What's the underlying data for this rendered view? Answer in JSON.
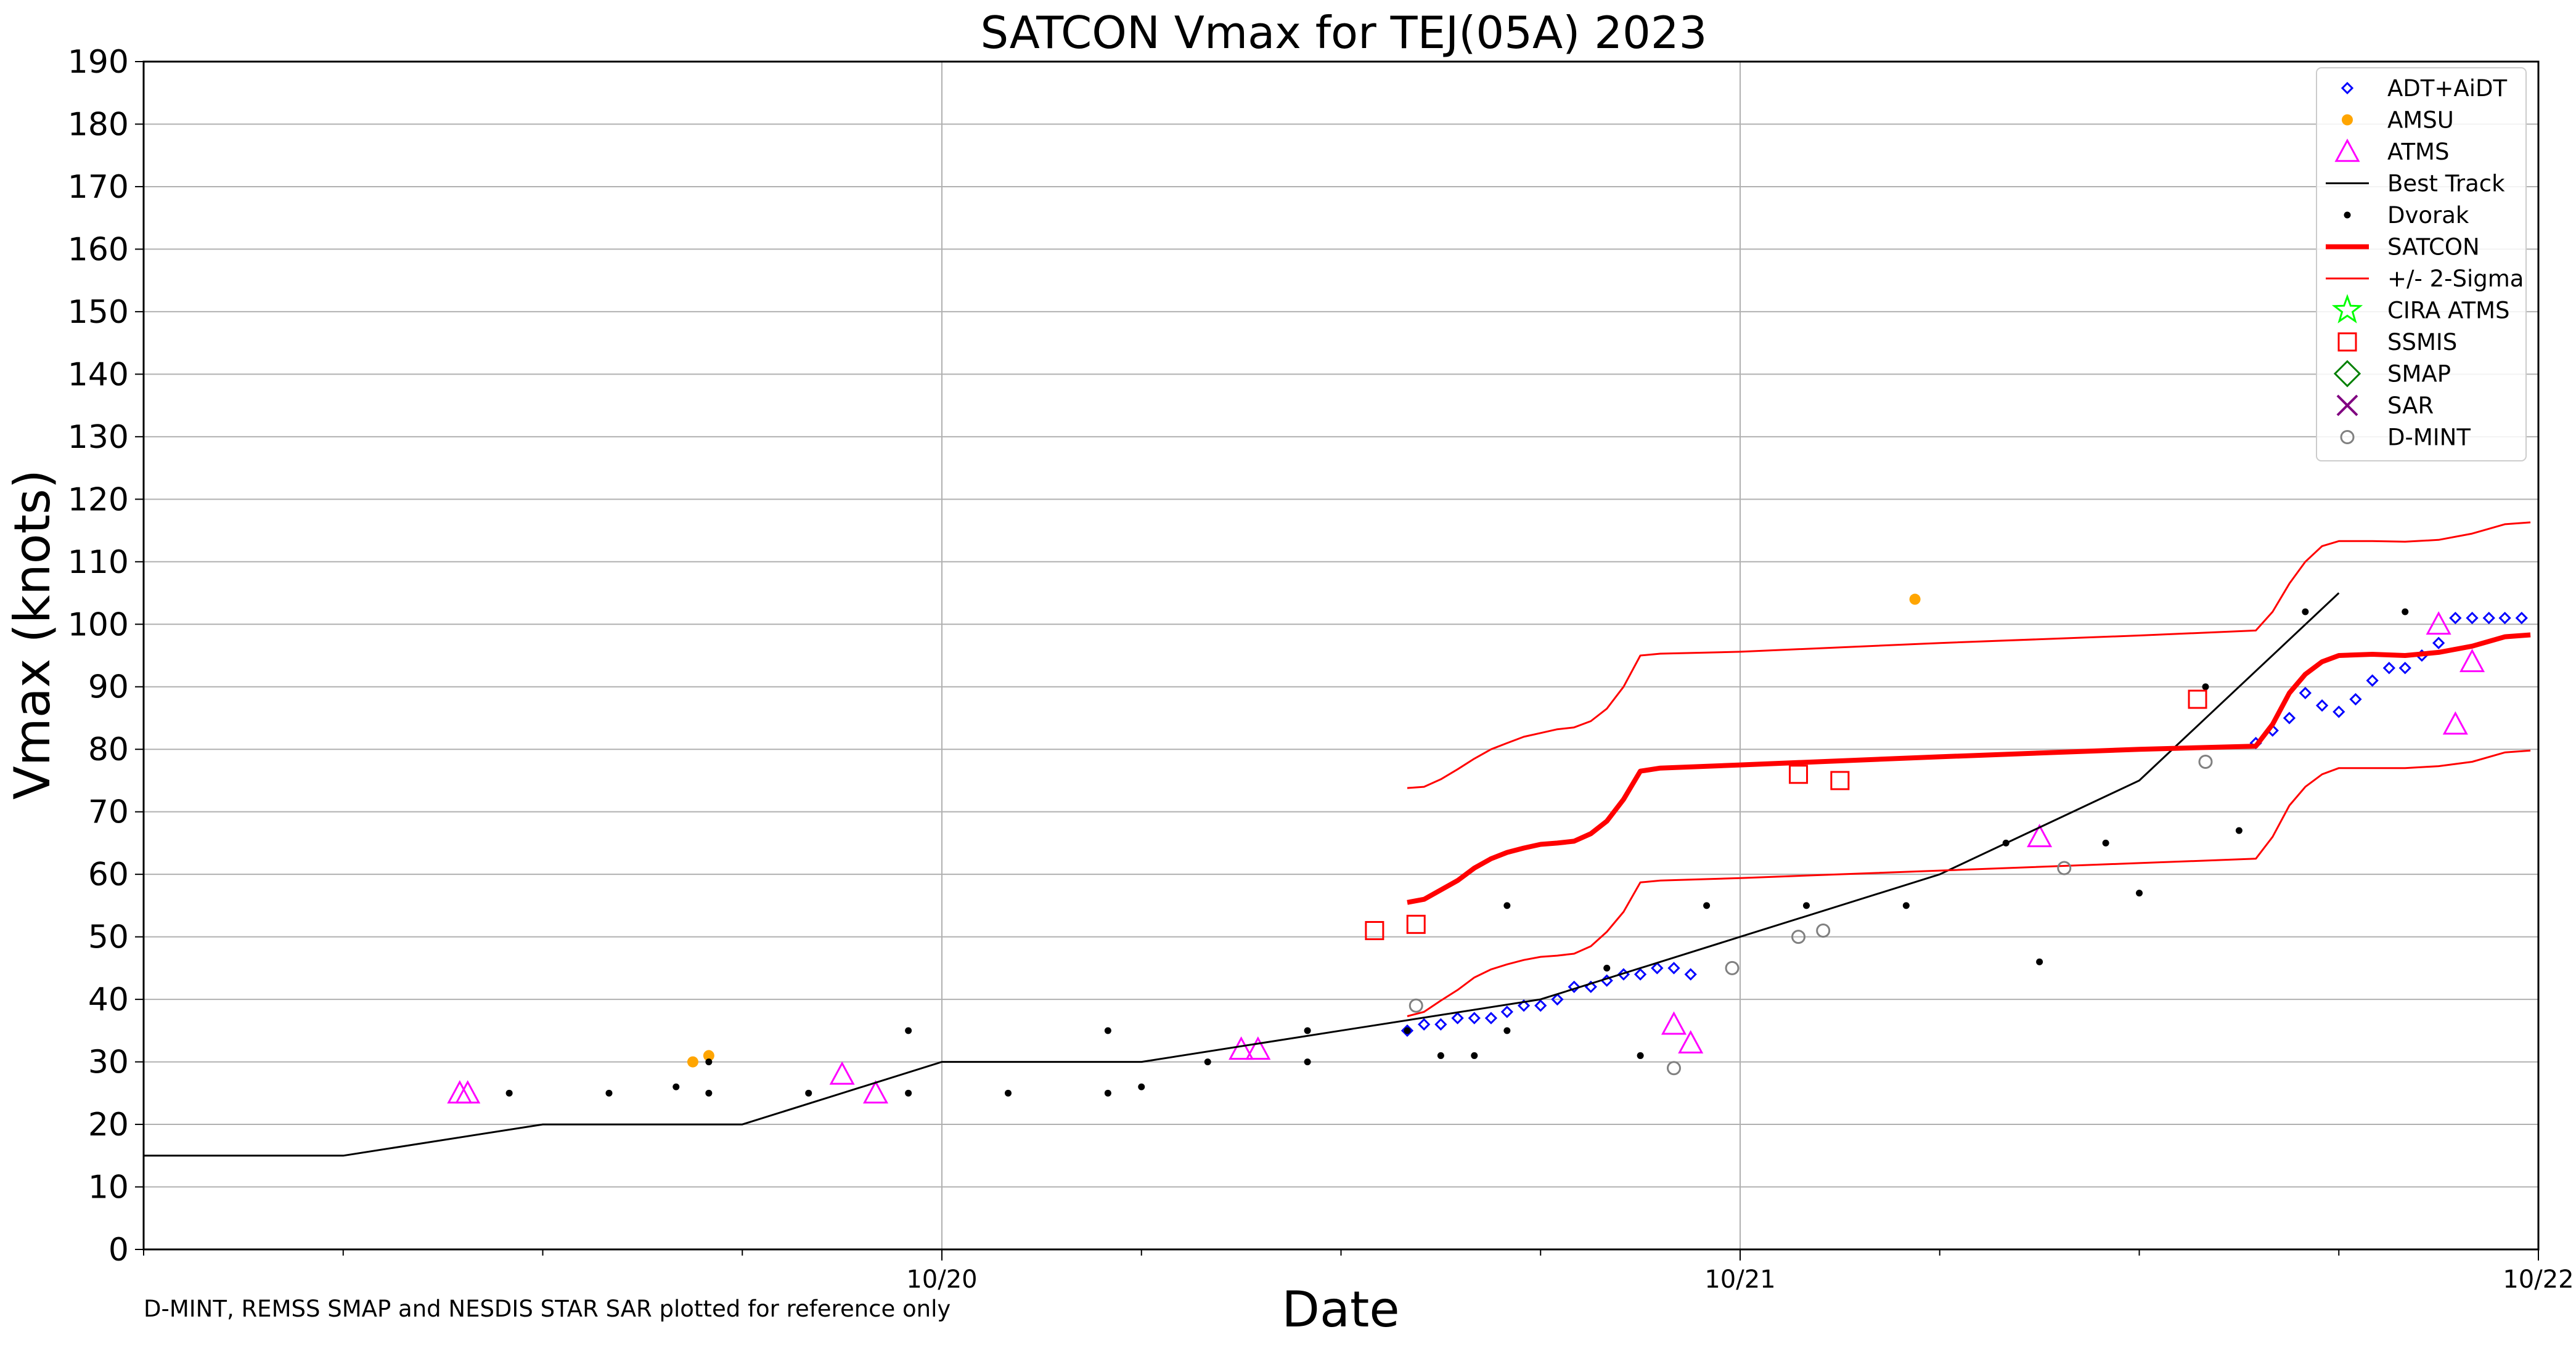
{
  "chart_data": {
    "type": "scatter",
    "title": "SATCON Vmax for TEJ(05A) 2023",
    "xlabel": "Date",
    "ylabel": "Vmax (knots)",
    "footnote": "D-MINT, REMSS SMAP and NESDIS STAR SAR plotted for reference only",
    "x_units": "days since 2023-10-19 00:00 UTC (tick labels show dates)",
    "xlim": [
      0,
      3
    ],
    "ylim": [
      0,
      190
    ],
    "yticks": [
      0,
      10,
      20,
      30,
      40,
      50,
      60,
      70,
      80,
      90,
      100,
      110,
      120,
      130,
      140,
      150,
      160,
      170,
      180,
      190
    ],
    "xticks": [
      {
        "x": 1,
        "label": "10/20"
      },
      {
        "x": 2,
        "label": "10/21"
      },
      {
        "x": 3,
        "label": "10/22"
      }
    ],
    "grid": true,
    "legend_position": "top-right",
    "series": [
      {
        "name": "ADT+AiDT",
        "kind": "marker",
        "marker": "diamond-open",
        "color": "#0000ff",
        "points": [
          [
            1.583,
            35
          ],
          [
            1.604,
            36
          ],
          [
            1.625,
            36
          ],
          [
            1.646,
            37
          ],
          [
            1.667,
            37
          ],
          [
            1.688,
            37
          ],
          [
            1.708,
            38
          ],
          [
            1.729,
            39
          ],
          [
            1.75,
            39
          ],
          [
            1.771,
            40
          ],
          [
            1.792,
            42
          ],
          [
            1.813,
            42
          ],
          [
            1.833,
            43
          ],
          [
            1.854,
            44
          ],
          [
            1.875,
            44
          ],
          [
            1.896,
            45
          ],
          [
            1.917,
            45
          ],
          [
            1.938,
            44
          ],
          [
            2.646,
            81
          ],
          [
            2.667,
            83
          ],
          [
            2.688,
            85
          ],
          [
            2.708,
            89
          ],
          [
            2.729,
            87
          ],
          [
            2.75,
            86
          ],
          [
            2.771,
            88
          ],
          [
            2.792,
            91
          ],
          [
            2.813,
            93
          ],
          [
            2.833,
            93
          ],
          [
            2.854,
            95
          ],
          [
            2.875,
            97
          ],
          [
            2.896,
            101
          ],
          [
            2.917,
            101
          ],
          [
            2.938,
            101
          ],
          [
            2.958,
            101
          ],
          [
            2.979,
            101
          ]
        ]
      },
      {
        "name": "AMSU",
        "kind": "marker",
        "marker": "dot",
        "color": "#ffa500",
        "points": [
          [
            0.688,
            30
          ],
          [
            0.708,
            31
          ],
          [
            2.219,
            104
          ]
        ]
      },
      {
        "name": "ATMS",
        "kind": "marker",
        "marker": "triangle-open",
        "color": "#ff00ff",
        "points": [
          [
            0.396,
            25
          ],
          [
            0.406,
            25
          ],
          [
            0.875,
            28
          ],
          [
            0.917,
            25
          ],
          [
            1.375,
            32
          ],
          [
            1.396,
            32
          ],
          [
            1.917,
            36
          ],
          [
            1.938,
            33
          ],
          [
            2.375,
            66
          ],
          [
            2.875,
            100
          ],
          [
            2.896,
            84
          ],
          [
            2.917,
            94
          ]
        ]
      },
      {
        "name": "Best Track",
        "kind": "line",
        "color": "#000000",
        "width": 1.5,
        "points": [
          [
            0,
            15
          ],
          [
            0.25,
            15
          ],
          [
            0.5,
            20
          ],
          [
            0.75,
            20
          ],
          [
            1.0,
            30
          ],
          [
            1.25,
            30
          ],
          [
            1.5,
            35
          ],
          [
            1.75,
            40
          ],
          [
            2.0,
            50
          ],
          [
            2.25,
            60
          ],
          [
            2.5,
            75
          ],
          [
            2.75,
            105
          ]
        ]
      },
      {
        "name": "Dvorak",
        "kind": "marker",
        "marker": "dot-small",
        "color": "#000000",
        "points": [
          [
            0.458,
            25
          ],
          [
            0.583,
            25
          ],
          [
            0.667,
            26
          ],
          [
            0.708,
            25
          ],
          [
            0.708,
            30
          ],
          [
            0.833,
            25
          ],
          [
            0.958,
            25
          ],
          [
            0.958,
            35
          ],
          [
            1.083,
            25
          ],
          [
            1.208,
            25
          ],
          [
            1.208,
            35
          ],
          [
            1.25,
            26
          ],
          [
            1.333,
            30
          ],
          [
            1.458,
            30
          ],
          [
            1.458,
            35
          ],
          [
            1.583,
            35
          ],
          [
            1.625,
            31
          ],
          [
            1.667,
            31
          ],
          [
            1.708,
            35
          ],
          [
            1.708,
            55
          ],
          [
            1.833,
            45
          ],
          [
            1.875,
            31
          ],
          [
            1.958,
            55
          ],
          [
            2.083,
            55
          ],
          [
            2.208,
            55
          ],
          [
            2.333,
            65
          ],
          [
            2.375,
            46
          ],
          [
            2.458,
            65
          ],
          [
            2.5,
            57
          ],
          [
            2.583,
            90
          ],
          [
            2.625,
            67
          ],
          [
            2.708,
            102
          ],
          [
            2.833,
            102
          ]
        ]
      },
      {
        "name": "SATCON",
        "kind": "line",
        "color": "#ff0000",
        "width": 4,
        "points": [
          [
            1.583,
            55.5
          ],
          [
            1.604,
            56
          ],
          [
            1.625,
            57.5
          ],
          [
            1.646,
            59
          ],
          [
            1.667,
            61
          ],
          [
            1.688,
            62.5
          ],
          [
            1.708,
            63.5
          ],
          [
            1.729,
            64.2
          ],
          [
            1.75,
            64.8
          ],
          [
            1.771,
            65
          ],
          [
            1.792,
            65.3
          ],
          [
            1.813,
            66.5
          ],
          [
            1.833,
            68.5
          ],
          [
            1.854,
            72
          ],
          [
            1.875,
            76.5
          ],
          [
            1.9,
            77
          ],
          [
            2.0,
            77.5
          ],
          [
            2.25,
            78.8
          ],
          [
            2.5,
            80
          ],
          [
            2.646,
            80.5
          ],
          [
            2.667,
            84
          ],
          [
            2.688,
            89
          ],
          [
            2.708,
            92
          ],
          [
            2.729,
            94
          ],
          [
            2.75,
            95
          ],
          [
            2.792,
            95.2
          ],
          [
            2.833,
            95
          ],
          [
            2.875,
            95.5
          ],
          [
            2.917,
            96.5
          ],
          [
            2.958,
            98
          ],
          [
            2.99,
            98.3
          ]
        ]
      },
      {
        "name": "+/- 2-Sigma",
        "kind": "line",
        "color": "#ff0000",
        "width": 1.5,
        "points": [
          [
            1.583,
            73.8
          ],
          [
            1.604,
            74
          ],
          [
            1.625,
            75.2
          ],
          [
            1.646,
            76.8
          ],
          [
            1.667,
            78.5
          ],
          [
            1.688,
            80
          ],
          [
            1.708,
            81
          ],
          [
            1.729,
            82
          ],
          [
            1.75,
            82.6
          ],
          [
            1.771,
            83.2
          ],
          [
            1.792,
            83.5
          ],
          [
            1.813,
            84.5
          ],
          [
            1.833,
            86.5
          ],
          [
            1.854,
            90
          ],
          [
            1.875,
            95
          ],
          [
            1.9,
            95.3
          ],
          [
            2.0,
            95.6
          ],
          [
            2.25,
            97
          ],
          [
            2.5,
            98.2
          ],
          [
            2.646,
            99
          ],
          [
            2.667,
            102
          ],
          [
            2.688,
            106.5
          ],
          [
            2.708,
            110
          ],
          [
            2.729,
            112.5
          ],
          [
            2.75,
            113.3
          ],
          [
            2.792,
            113.3
          ],
          [
            2.833,
            113.2
          ],
          [
            2.875,
            113.5
          ],
          [
            2.917,
            114.5
          ],
          [
            2.958,
            116
          ],
          [
            2.99,
            116.3
          ]
        ]
      },
      {
        "name": "",
        "kind": "line",
        "color": "#ff0000",
        "width": 1.5,
        "points": [
          [
            1.583,
            37.3
          ],
          [
            1.604,
            38
          ],
          [
            1.625,
            39.8
          ],
          [
            1.646,
            41.5
          ],
          [
            1.667,
            43.5
          ],
          [
            1.688,
            44.8
          ],
          [
            1.708,
            45.6
          ],
          [
            1.729,
            46.3
          ],
          [
            1.75,
            46.8
          ],
          [
            1.771,
            47
          ],
          [
            1.792,
            47.3
          ],
          [
            1.813,
            48.5
          ],
          [
            1.833,
            50.8
          ],
          [
            1.854,
            54
          ],
          [
            1.875,
            58.7
          ],
          [
            1.9,
            59
          ],
          [
            2.0,
            59.4
          ],
          [
            2.25,
            60.6
          ],
          [
            2.5,
            61.8
          ],
          [
            2.646,
            62.5
          ],
          [
            2.667,
            66
          ],
          [
            2.688,
            71
          ],
          [
            2.708,
            74
          ],
          [
            2.729,
            76
          ],
          [
            2.75,
            77
          ],
          [
            2.792,
            77
          ],
          [
            2.833,
            77
          ],
          [
            2.875,
            77.3
          ],
          [
            2.917,
            78
          ],
          [
            2.958,
            79.5
          ],
          [
            2.99,
            79.8
          ]
        ]
      },
      {
        "name": "CIRA ATMS",
        "kind": "marker",
        "marker": "star-open",
        "color": "#00ff00",
        "points": []
      },
      {
        "name": "SSMIS",
        "kind": "marker",
        "marker": "square-open",
        "color": "#ff0000",
        "points": [
          [
            1.542,
            51
          ],
          [
            1.594,
            52
          ],
          [
            2.073,
            76
          ],
          [
            2.125,
            75
          ],
          [
            2.573,
            88
          ]
        ]
      },
      {
        "name": "SMAP",
        "kind": "marker",
        "marker": "diamond-large",
        "color": "#008000",
        "points": []
      },
      {
        "name": "SAR",
        "kind": "marker",
        "marker": "x",
        "color": "#800080",
        "points": []
      },
      {
        "name": "D-MINT",
        "kind": "marker",
        "marker": "circle-open",
        "color": "#808080",
        "points": [
          [
            1.594,
            39
          ],
          [
            1.917,
            29
          ],
          [
            1.99,
            45
          ],
          [
            2.073,
            50
          ],
          [
            2.104,
            51
          ],
          [
            2.406,
            61
          ],
          [
            2.583,
            78
          ]
        ]
      }
    ]
  }
}
